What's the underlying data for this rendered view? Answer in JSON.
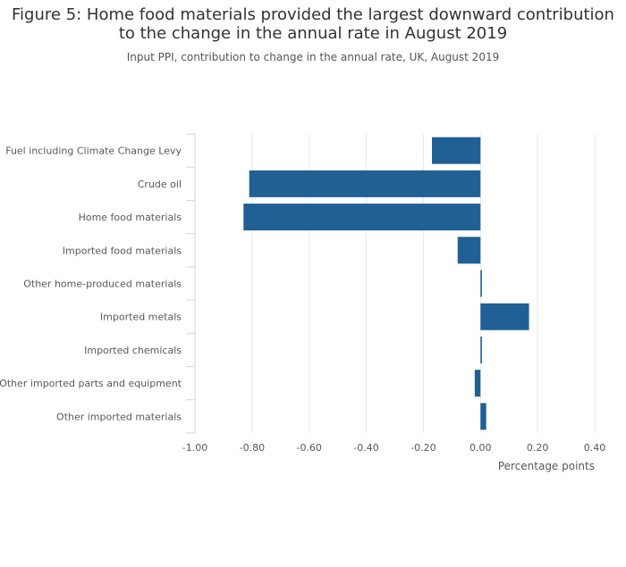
{
  "title_line1": "Figure 5: Home food materials provided the largest downward contribution",
  "title_line2": "to the change in the annual rate in August 2019",
  "subtitle": "Input PPI, contribution to change in the annual rate, UK, August 2019",
  "colors": {
    "bar": "#206095",
    "grid": "#e6e6e6",
    "axis": "#ccd6eb",
    "text": "#595959"
  },
  "chart_data": {
    "type": "bar",
    "orientation": "horizontal",
    "categories": [
      "Fuel including Climate Change Levy",
      "Crude oil",
      "Home food materials",
      "Imported food materials",
      "Other home-produced materials",
      "Imported metals",
      "Imported chemicals",
      "Other imported parts and equipment",
      "Other imported materials"
    ],
    "values": [
      -0.17,
      -0.81,
      -0.83,
      -0.08,
      0.005,
      0.17,
      0.005,
      -0.02,
      0.02
    ],
    "xlabel": "Percentage points",
    "xlim": [
      -1.0,
      0.4
    ],
    "xticks": [
      -1.0,
      -0.8,
      -0.6,
      -0.4,
      -0.2,
      0.0,
      0.2,
      0.4
    ],
    "xtick_labels": [
      "-1.00",
      "-0.80",
      "-0.60",
      "-0.40",
      "-0.20",
      "0.00",
      "0.20",
      "0.40"
    ],
    "grid": true,
    "legend": "none"
  }
}
